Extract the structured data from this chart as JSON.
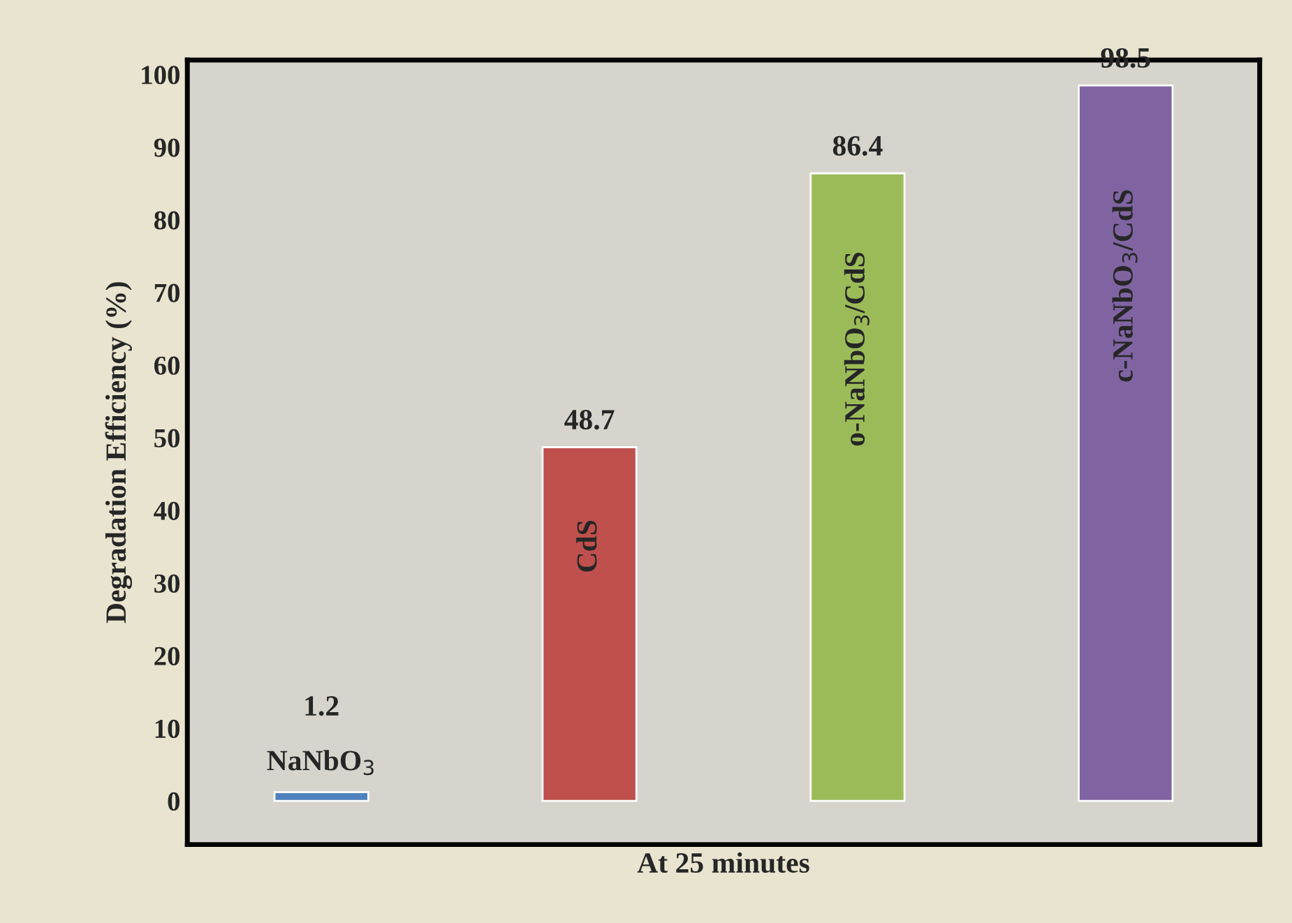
{
  "chart_data": {
    "type": "bar",
    "xlabel": "At 25 minutes",
    "ylabel": "Degradation Efficiency (%)",
    "categories": [
      "NaNbO$_{3}$",
      "CdS",
      "o-NaNbO$_{3}$/CdS",
      "c-NaNbO$_{3}$/CdS"
    ],
    "values": [
      1.2,
      48.7,
      86.4,
      98.5
    ],
    "colors": [
      "#4f81bd",
      "#c0504d",
      "#9bbb59",
      "#8064a2"
    ],
    "ylim": [
      -6,
      102
    ],
    "yticks": [
      0,
      10,
      20,
      30,
      40,
      50,
      60,
      70,
      80,
      90,
      100
    ],
    "data_labels": true,
    "grid": false,
    "legend": false
  }
}
